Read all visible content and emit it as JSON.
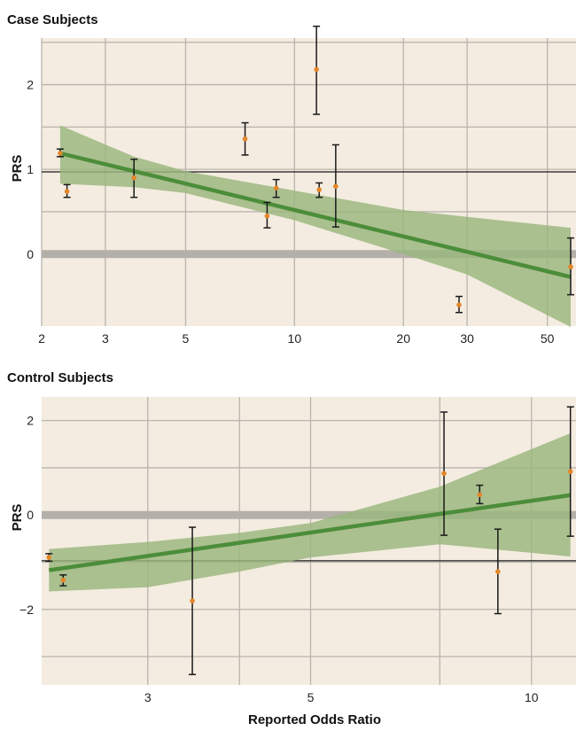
{
  "chart_data": [
    {
      "type": "scatter",
      "title": "Case Subjects",
      "ylabel": "PRS",
      "xlabel": "",
      "x_scale": "log",
      "xlim": [
        2.0,
        60
      ],
      "ylim": [
        -0.85,
        2.55
      ],
      "x_ticks": [
        2,
        3,
        5,
        10,
        20,
        30,
        50
      ],
      "x_tick_labels": [
        "2",
        "3",
        "5",
        "10",
        "20",
        "30",
        "50"
      ],
      "y_ticks": [
        0,
        1,
        2
      ],
      "y_tick_labels": [
        "0",
        "1",
        "2"
      ],
      "x_gridlines": [
        2,
        3,
        5,
        10,
        20,
        30,
        50
      ],
      "y_gridlines": [
        0.5,
        1.5,
        2.5
      ],
      "points": [
        {
          "x": 2.25,
          "y": 1.19,
          "lo": 1.15,
          "hi": 1.24
        },
        {
          "x": 2.35,
          "y": 0.74,
          "lo": 0.67,
          "hi": 0.82
        },
        {
          "x": 3.6,
          "y": 0.9,
          "lo": 0.67,
          "hi": 1.12
        },
        {
          "x": 7.3,
          "y": 1.36,
          "lo": 1.17,
          "hi": 1.55
        },
        {
          "x": 8.4,
          "y": 0.45,
          "lo": 0.31,
          "hi": 0.61
        },
        {
          "x": 8.9,
          "y": 0.78,
          "lo": 0.67,
          "hi": 0.88
        },
        {
          "x": 11.5,
          "y": 2.18,
          "lo": 1.65,
          "hi": 2.69
        },
        {
          "x": 11.7,
          "y": 0.76,
          "lo": 0.67,
          "hi": 0.84
        },
        {
          "x": 13.0,
          "y": 0.8,
          "lo": 0.32,
          "hi": 1.29
        },
        {
          "x": 28.5,
          "y": -0.6,
          "lo": -0.69,
          "hi": -0.5
        },
        {
          "x": 58.0,
          "y": -0.15,
          "lo": -0.48,
          "hi": 0.19
        }
      ],
      "fit_line": {
        "x": [
          2.25,
          58.0
        ],
        "y": [
          1.19,
          -0.27
        ]
      },
      "confidence_band": {
        "x": [
          2.25,
          3.6,
          5,
          10,
          20,
          30,
          58.0
        ],
        "upper": [
          1.52,
          1.15,
          0.98,
          0.75,
          0.52,
          0.44,
          0.31
        ],
        "lower": [
          0.83,
          0.79,
          0.72,
          0.4,
          0.0,
          -0.24,
          -0.86
        ]
      },
      "reference_lines": {
        "zero_band": 0,
        "unity_line": 0.97
      },
      "colors": {
        "background": "#f4ece0",
        "band": "#9ab67d",
        "fit": "#4c8d3a",
        "point": "#e3862a",
        "errorbar": "#1a1a1a",
        "grid": "#b9b4ad",
        "zero_band": "#b3afa9"
      }
    },
    {
      "type": "scatter",
      "title": "Control Subjects",
      "ylabel": "PRS",
      "xlabel": "Reported Odds Ratio",
      "x_scale": "log",
      "xlim": [
        2.15,
        11.5
      ],
      "ylim": [
        -3.6,
        2.5
      ],
      "x_ticks": [
        3,
        5,
        10
      ],
      "x_tick_labels": [
        "3",
        "5",
        "10"
      ],
      "y_ticks": [
        2,
        0,
        -2
      ],
      "y_tick_labels": [
        "2",
        "0",
        "−2"
      ],
      "x_gridlines": [
        3,
        4,
        5,
        7.5,
        10
      ],
      "y_gridlines": [
        1,
        -1,
        -3
      ],
      "points": [
        {
          "x": 2.2,
          "y": -0.9,
          "lo": -0.98,
          "hi": -0.82
        },
        {
          "x": 2.3,
          "y": -1.38,
          "lo": -1.5,
          "hi": -1.27
        },
        {
          "x": 3.45,
          "y": -1.82,
          "lo": -3.38,
          "hi": -0.26
        },
        {
          "x": 7.6,
          "y": 0.88,
          "lo": -0.43,
          "hi": 2.18
        },
        {
          "x": 8.5,
          "y": 0.43,
          "lo": 0.24,
          "hi": 0.63
        },
        {
          "x": 9.0,
          "y": -1.2,
          "lo": -2.09,
          "hi": -0.3
        },
        {
          "x": 11.3,
          "y": 0.92,
          "lo": -0.45,
          "hi": 2.29
        }
      ],
      "fit_line": {
        "x": [
          2.2,
          11.3
        ],
        "y": [
          -1.17,
          0.42
        ]
      },
      "confidence_band": {
        "x": [
          2.2,
          3,
          4,
          5,
          7.5,
          11.3
        ],
        "upper": [
          -0.72,
          -0.57,
          -0.38,
          -0.17,
          0.6,
          1.73
        ],
        "lower": [
          -1.62,
          -1.53,
          -1.2,
          -0.9,
          -0.62,
          -0.88
        ]
      },
      "reference_lines": {
        "zero_band": 0,
        "unity_line": -0.97
      },
      "colors": {
        "background": "#f4ece0",
        "band": "#9ab67d",
        "fit": "#4c8d3a",
        "point": "#e3862a",
        "errorbar": "#1a1a1a",
        "grid": "#b9b4ad",
        "zero_band": "#b3afa9"
      }
    }
  ]
}
